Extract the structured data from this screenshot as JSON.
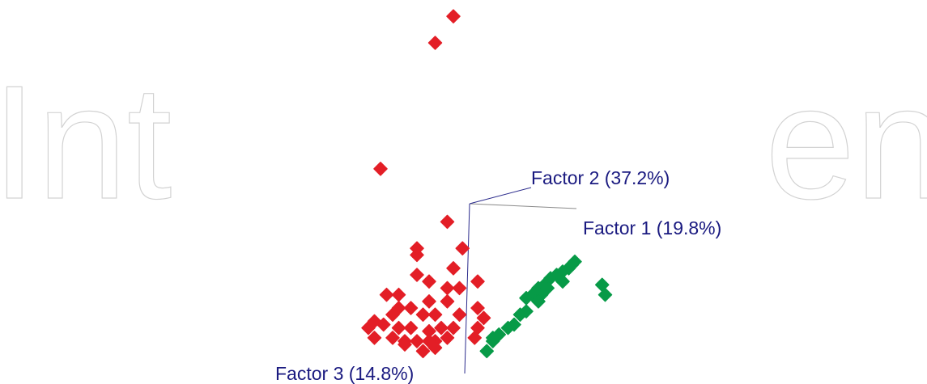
{
  "watermark": {
    "left_text": "Int",
    "right_text": "en",
    "color": "#d2d2d2"
  },
  "chart_data": {
    "type": "scatter",
    "title": "",
    "projection": "3d",
    "axes": [
      {
        "name": "Factor 1",
        "label": "Factor 1 (19.8%)",
        "variance_percent": 19.8
      },
      {
        "name": "Factor 2",
        "label": "Factor 2 (37.2%)",
        "variance_percent": 37.2
      },
      {
        "name": "Factor 3",
        "label": "Factor 3 (14.8%)",
        "variance_percent": 14.8
      }
    ],
    "axis_line_color": "#2b2b8c",
    "axis_label_color": "#1a1a80",
    "grid": false,
    "legend": "none",
    "series": [
      {
        "color": "#e31e26",
        "points": [
          [
            -0.2,
            3.9
          ],
          [
            -0.5,
            3.5
          ],
          [
            -1.4,
            1.6
          ],
          [
            -0.3,
            0.8
          ],
          [
            -0.05,
            0.4
          ],
          [
            -0.8,
            0.3
          ],
          [
            -0.8,
            0.4
          ],
          [
            -0.2,
            0.1
          ],
          [
            -0.8,
            0.0
          ],
          [
            -0.6,
            -0.1
          ],
          [
            -1.1,
            -0.3
          ],
          [
            -0.3,
            -0.2
          ],
          [
            -0.1,
            -0.2
          ],
          [
            0.2,
            -0.1
          ],
          [
            -1.3,
            -0.3
          ],
          [
            -1.1,
            -0.5
          ],
          [
            -0.9,
            -0.5
          ],
          [
            -0.7,
            -0.6
          ],
          [
            -0.5,
            -0.6
          ],
          [
            -0.6,
            -0.4
          ],
          [
            -0.3,
            -0.4
          ],
          [
            -0.1,
            -0.6
          ],
          [
            0.2,
            -0.5
          ],
          [
            -1.2,
            -0.6
          ],
          [
            -1.5,
            -0.7
          ],
          [
            -1.35,
            -0.75
          ],
          [
            -1.1,
            -0.8
          ],
          [
            -0.9,
            -0.8
          ],
          [
            -0.6,
            -0.85
          ],
          [
            -0.4,
            -0.8
          ],
          [
            -0.2,
            -0.8
          ],
          [
            0.2,
            -0.8
          ],
          [
            0.3,
            -0.65
          ],
          [
            -1.6,
            -0.8
          ],
          [
            -1.5,
            -0.95
          ],
          [
            -1.2,
            -0.95
          ],
          [
            -1.0,
            -1.0
          ],
          [
            -0.8,
            -1.0
          ],
          [
            -0.6,
            -1.0
          ],
          [
            -0.5,
            -1.0
          ],
          [
            -0.3,
            -0.95
          ],
          [
            0.15,
            -0.95
          ],
          [
            -1.0,
            -1.05
          ],
          [
            -0.7,
            -1.15
          ],
          [
            -0.5,
            -1.1
          ]
        ]
      },
      {
        "color": "#079a47",
        "points": [
          [
            1.8,
            0.2
          ],
          [
            1.75,
            0.15
          ],
          [
            1.6,
            0.05
          ],
          [
            1.7,
            0.1
          ],
          [
            1.5,
            0.0
          ],
          [
            1.4,
            -0.05
          ],
          [
            1.6,
            -0.1
          ],
          [
            1.3,
            -0.15
          ],
          [
            1.2,
            -0.2
          ],
          [
            1.35,
            -0.2
          ],
          [
            1.1,
            -0.3
          ],
          [
            1.25,
            -0.3
          ],
          [
            1.0,
            -0.35
          ],
          [
            1.2,
            -0.4
          ],
          [
            2.25,
            -0.15
          ],
          [
            2.3,
            -0.3
          ],
          [
            1.0,
            -0.55
          ],
          [
            0.9,
            -0.6
          ],
          [
            0.8,
            -0.75
          ],
          [
            0.7,
            -0.8
          ],
          [
            0.55,
            -0.9
          ],
          [
            0.45,
            -1.0
          ],
          [
            0.35,
            -1.15
          ],
          [
            0.45,
            -0.95
          ]
        ]
      }
    ]
  }
}
